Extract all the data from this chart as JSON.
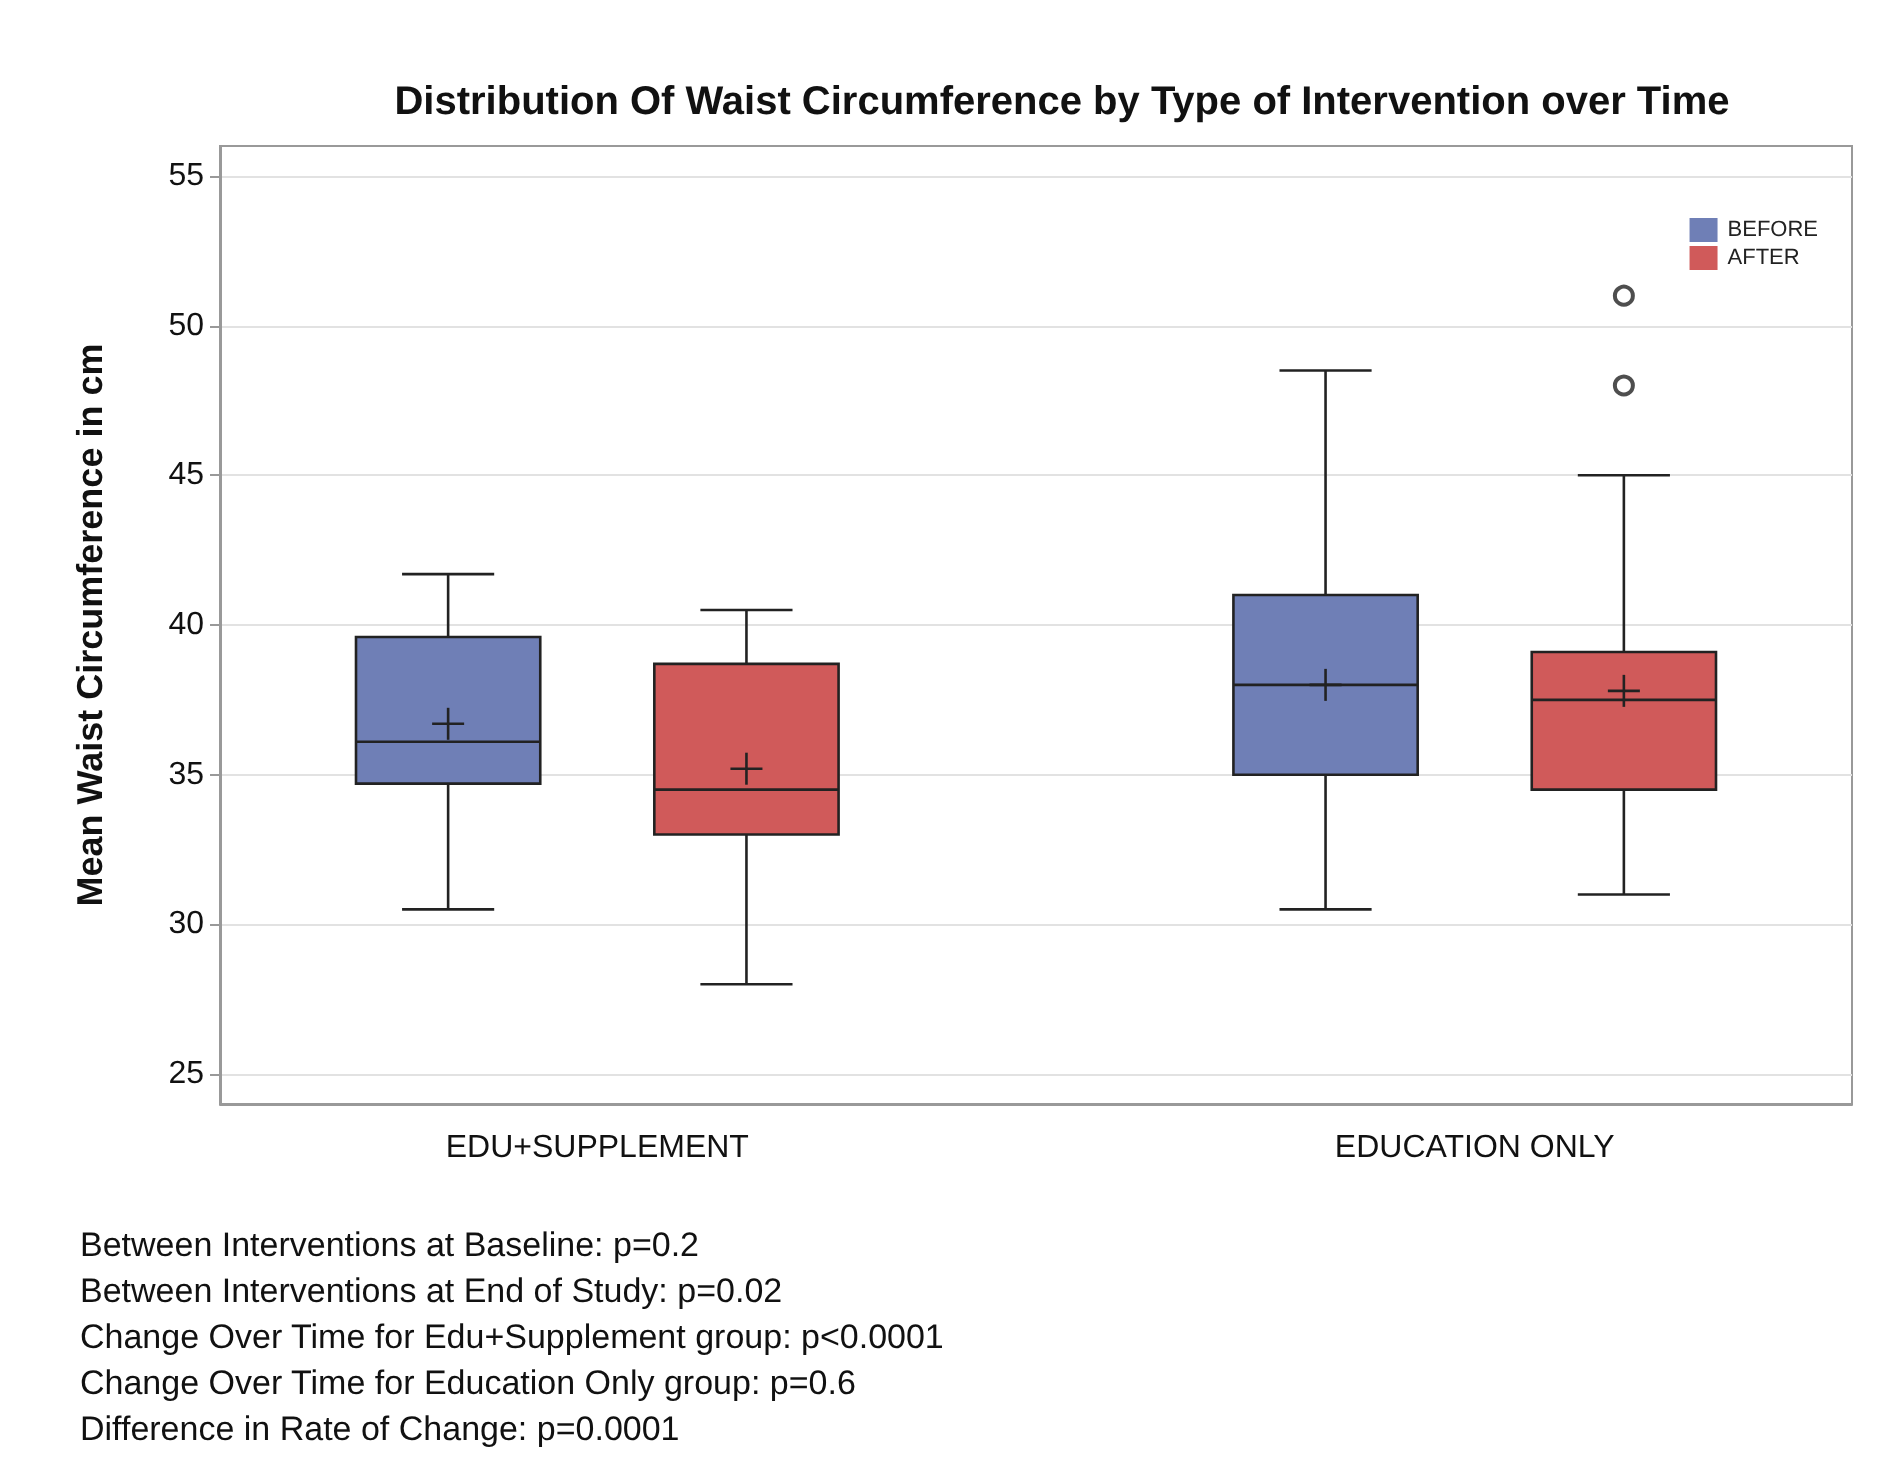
{
  "chart_data": {
    "type": "box",
    "title": "Distribution Of Waist Circumference by Type of Intervention over Time",
    "ylabel": "Mean Waist Circumference in cm",
    "categories": [
      "EDU+SUPPLEMENT",
      "EDUCATION ONLY"
    ],
    "series": [
      {
        "name": "BEFORE",
        "color": "#6f7fb6",
        "boxes": [
          {
            "low": 30.5,
            "q1": 34.7,
            "median": 36.1,
            "q3": 39.6,
            "high": 41.7,
            "mean": 36.7
          },
          {
            "low": 30.5,
            "q1": 35.0,
            "median": 38.0,
            "q3": 41.0,
            "high": 48.5,
            "mean": 38.0
          }
        ]
      },
      {
        "name": "AFTER",
        "color": "#d05a5a",
        "boxes": [
          {
            "low": 28.0,
            "q1": 33.0,
            "median": 34.5,
            "q3": 38.7,
            "high": 40.5,
            "mean": 35.2
          },
          {
            "low": 31.0,
            "q1": 34.5,
            "median": 37.5,
            "q3": 39.1,
            "high": 45.0,
            "mean": 37.8,
            "outliers": [
              51.0,
              48.0
            ]
          }
        ]
      }
    ],
    "ylim": [
      24,
      56
    ],
    "yticks": [
      25,
      30,
      35,
      40,
      45,
      50,
      55
    ],
    "grid": "y",
    "legend": "top right",
    "annotations": [
      "Between Interventions at Baseline: p=0.2",
      "Between Interventions at End of Study: p=0.02",
      "Change Over Time for Edu+Supplement group: p<0.0001",
      "Change Over Time for Education Only group: p=0.6",
      "Difference in Rate of Change: p=0.0001"
    ]
  }
}
